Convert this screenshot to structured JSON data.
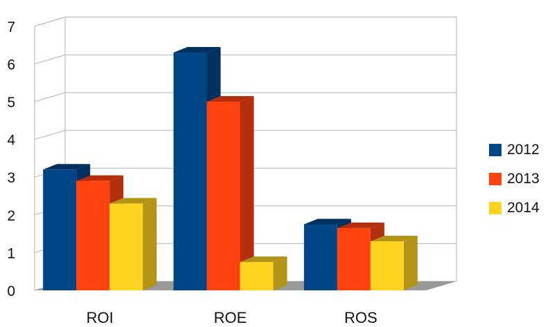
{
  "chart_data": {
    "type": "bar",
    "categories": [
      "ROI",
      "ROE",
      "ROS"
    ],
    "series": [
      {
        "name": "2012",
        "values": [
          3.2,
          6.3,
          1.75
        ],
        "color": "#004586",
        "side": "#00305e"
      },
      {
        "name": "2013",
        "values": [
          2.9,
          5.0,
          1.65
        ],
        "color": "#ff420e",
        "side": "#b32e0a"
      },
      {
        "name": "2014",
        "values": [
          2.3,
          0.75,
          1.3
        ],
        "color": "#ffd320",
        "side": "#b39416"
      }
    ],
    "yticks": [
      "0",
      "1",
      "2",
      "3",
      "4",
      "5",
      "6",
      "7"
    ],
    "ylim": [
      0,
      7
    ],
    "grid": true,
    "legend_position": "right",
    "style": "3d"
  }
}
